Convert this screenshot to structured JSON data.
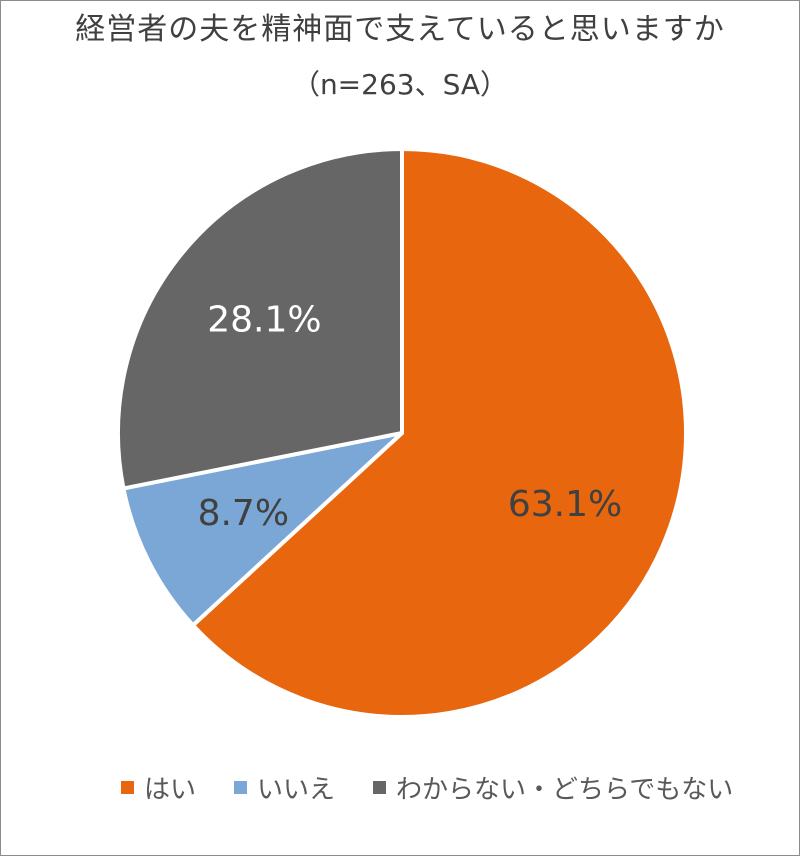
{
  "chart_data": {
    "type": "pie",
    "title": "経営者の夫を精神面で支えていると思いますか",
    "subtitle": "（n=263、SA）",
    "categories": [
      "はい",
      "いいえ",
      "わからない・どちらでもない"
    ],
    "values": [
      63.1,
      8.7,
      28.1
    ],
    "labels": [
      "63.1%",
      "8.7%",
      "28.1%"
    ],
    "colors": [
      "#E8660D",
      "#7BA7D6",
      "#666666"
    ],
    "label_colors": [
      "#404040",
      "#404040",
      "#ffffff"
    ],
    "start_angle": "12 o'clock",
    "direction": "clockwise",
    "legend_position": "bottom"
  }
}
